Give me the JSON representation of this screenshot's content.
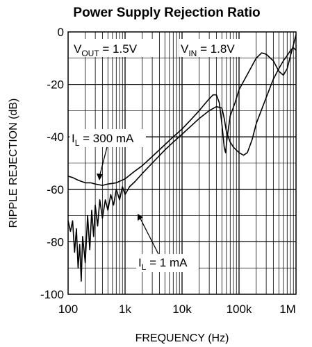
{
  "chart_data": {
    "type": "line",
    "title": "Power Supply Rejection Ratio",
    "xlabel": "FREQUENCY (Hz)",
    "ylabel": "RIPPLE REJECTION (dB)",
    "xscale": "log",
    "xlim": [
      100,
      1000000
    ],
    "ylim": [
      -100,
      0
    ],
    "grid": true,
    "x_ticks": [
      {
        "value": 100,
        "label": "100"
      },
      {
        "value": 1000,
        "label": "1k"
      },
      {
        "value": 10000,
        "label": "10k"
      },
      {
        "value": 100000,
        "label": "100k"
      },
      {
        "value": 1000000,
        "label": "1M"
      }
    ],
    "y_ticks": [
      {
        "value": 0,
        "label": "0"
      },
      {
        "value": -20,
        "label": "-20"
      },
      {
        "value": -40,
        "label": "-40"
      },
      {
        "value": -60,
        "label": "-60"
      },
      {
        "value": -80,
        "label": "-80"
      },
      {
        "value": -100,
        "label": "-100"
      }
    ],
    "annotations": {
      "vout": {
        "main": "V",
        "sub": "OUT",
        "rest": " = 1.5V"
      },
      "vin": {
        "main": "V",
        "sub": "IN",
        "rest": " = 1.8V"
      },
      "il_300": {
        "main": "I",
        "sub": "L",
        "rest": " = 300 mA"
      },
      "il_1": {
        "main": "I",
        "sub": "L",
        "rest": " = 1 mA"
      }
    },
    "series": [
      {
        "name": "I_L = 300 mA",
        "points": [
          [
            100,
            -55
          ],
          [
            120,
            -55.5
          ],
          [
            150,
            -56.5
          ],
          [
            200,
            -57.5
          ],
          [
            250,
            -57.5
          ],
          [
            300,
            -58
          ],
          [
            400,
            -58.5
          ],
          [
            500,
            -58
          ],
          [
            700,
            -57.5
          ],
          [
            1000,
            -56
          ],
          [
            1500,
            -53
          ],
          [
            2000,
            -51
          ],
          [
            3000,
            -47.5
          ],
          [
            5000,
            -43
          ],
          [
            7000,
            -40
          ],
          [
            10000,
            -37
          ],
          [
            15000,
            -33
          ],
          [
            20000,
            -30
          ],
          [
            25000,
            -27.5
          ],
          [
            30000,
            -25.5
          ],
          [
            35000,
            -24
          ],
          [
            40000,
            -24
          ],
          [
            45000,
            -27
          ],
          [
            50000,
            -35
          ],
          [
            55000,
            -44
          ],
          [
            58000,
            -46
          ],
          [
            62000,
            -40
          ],
          [
            70000,
            -32
          ],
          [
            85000,
            -27
          ],
          [
            100000,
            -22
          ],
          [
            150000,
            -15
          ],
          [
            200000,
            -10
          ],
          [
            250000,
            -8
          ],
          [
            300000,
            -8.5
          ],
          [
            400000,
            -11
          ],
          [
            500000,
            -15
          ],
          [
            600000,
            -16.5
          ],
          [
            700000,
            -14
          ],
          [
            800000,
            -9
          ],
          [
            900000,
            -5
          ],
          [
            1000000,
            -1
          ]
        ]
      },
      {
        "name": "I_L = 1 mA",
        "points": [
          [
            100,
            -72
          ],
          [
            110,
            -76
          ],
          [
            120,
            -72
          ],
          [
            130,
            -84
          ],
          [
            140,
            -75
          ],
          [
            150,
            -90
          ],
          [
            160,
            -81
          ],
          [
            170,
            -95
          ],
          [
            180,
            -78
          ],
          [
            200,
            -88
          ],
          [
            220,
            -70
          ],
          [
            240,
            -83
          ],
          [
            260,
            -68
          ],
          [
            280,
            -78
          ],
          [
            300,
            -66
          ],
          [
            330,
            -74
          ],
          [
            360,
            -64
          ],
          [
            400,
            -71
          ],
          [
            450,
            -64
          ],
          [
            500,
            -68
          ],
          [
            560,
            -62
          ],
          [
            630,
            -66
          ],
          [
            700,
            -60
          ],
          [
            800,
            -64
          ],
          [
            900,
            -59
          ],
          [
            1000,
            -62
          ],
          [
            1200,
            -59
          ],
          [
            1500,
            -57
          ],
          [
            2000,
            -54
          ],
          [
            3000,
            -50
          ],
          [
            5000,
            -45
          ],
          [
            7000,
            -42
          ],
          [
            10000,
            -39
          ],
          [
            15000,
            -35.5
          ],
          [
            20000,
            -33
          ],
          [
            30000,
            -30
          ],
          [
            40000,
            -28.5
          ],
          [
            50000,
            -29
          ],
          [
            55000,
            -33
          ],
          [
            60000,
            -38
          ],
          [
            70000,
            -42
          ],
          [
            80000,
            -44
          ],
          [
            100000,
            -46
          ],
          [
            120000,
            -47
          ],
          [
            140000,
            -46
          ],
          [
            170000,
            -41
          ],
          [
            200000,
            -35
          ],
          [
            300000,
            -25
          ],
          [
            400000,
            -18
          ],
          [
            500000,
            -14
          ],
          [
            600000,
            -11
          ],
          [
            700000,
            -9
          ],
          [
            800000,
            -7
          ],
          [
            900000,
            -6
          ],
          [
            1000000,
            -7
          ]
        ]
      }
    ]
  }
}
